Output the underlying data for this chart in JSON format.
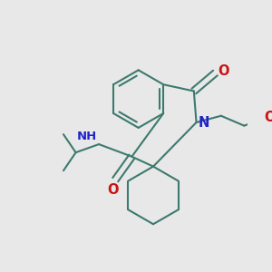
{
  "background_color": "#e8e8e8",
  "bond_color": "#3d7a6e",
  "bond_width": 1.5,
  "N_color": "#2222cc",
  "O_color": "#cc1111",
  "font_size": 8.5,
  "figsize": [
    3.0,
    3.0
  ],
  "dpi": 100,
  "xlim": [
    0,
    300
  ],
  "ylim": [
    0,
    300
  ]
}
